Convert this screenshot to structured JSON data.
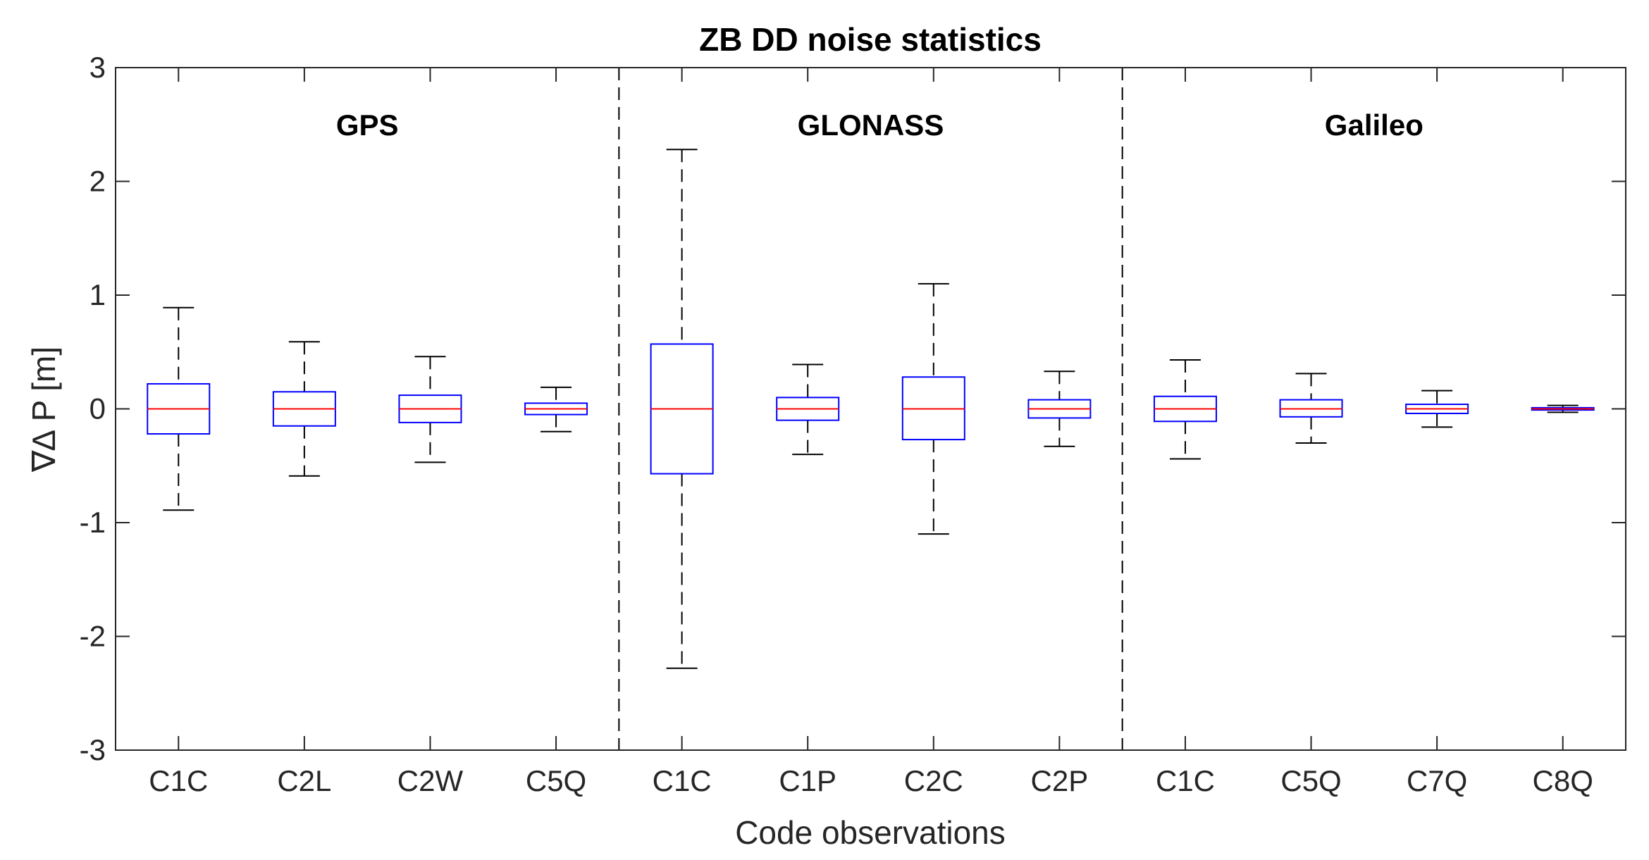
{
  "chart_data": {
    "type": "boxplot",
    "title": "ZB DD noise statistics",
    "xlabel": "Code observations",
    "ylabel": "∇∆ P [m]",
    "ylim": [
      -3,
      3
    ],
    "yticks": [
      -3,
      -2,
      -1,
      0,
      1,
      2,
      3
    ],
    "grid": false,
    "colors": {
      "box": "#0000ff",
      "median": "#ff0000",
      "whisker": "#000000",
      "axis": "#262626"
    },
    "groups": [
      {
        "name": "GPS",
        "categories": [
          "C1C",
          "C2L",
          "C2W",
          "C5Q"
        ]
      },
      {
        "name": "GLONASS",
        "categories": [
          "C1C",
          "C1P",
          "C2C",
          "C2P"
        ]
      },
      {
        "name": "Galileo",
        "categories": [
          "C1C",
          "C5Q",
          "C7Q",
          "C8Q"
        ]
      }
    ],
    "boxes": [
      {
        "label": "C1C",
        "group": "GPS",
        "whisker_low": -0.89,
        "q1": -0.22,
        "median": 0.0,
        "q3": 0.22,
        "whisker_high": 0.89
      },
      {
        "label": "C2L",
        "group": "GPS",
        "whisker_low": -0.59,
        "q1": -0.15,
        "median": 0.0,
        "q3": 0.15,
        "whisker_high": 0.59
      },
      {
        "label": "C2W",
        "group": "GPS",
        "whisker_low": -0.47,
        "q1": -0.12,
        "median": 0.0,
        "q3": 0.12,
        "whisker_high": 0.46
      },
      {
        "label": "C5Q",
        "group": "GPS",
        "whisker_low": -0.2,
        "q1": -0.05,
        "median": 0.0,
        "q3": 0.05,
        "whisker_high": 0.19
      },
      {
        "label": "C1C",
        "group": "GLONASS",
        "whisker_low": -2.28,
        "q1": -0.57,
        "median": 0.0,
        "q3": 0.57,
        "whisker_high": 2.28
      },
      {
        "label": "C1P",
        "group": "GLONASS",
        "whisker_low": -0.4,
        "q1": -0.1,
        "median": 0.0,
        "q3": 0.1,
        "whisker_high": 0.39
      },
      {
        "label": "C2C",
        "group": "GLONASS",
        "whisker_low": -1.1,
        "q1": -0.27,
        "median": 0.0,
        "q3": 0.28,
        "whisker_high": 1.1
      },
      {
        "label": "C2P",
        "group": "GLONASS",
        "whisker_low": -0.33,
        "q1": -0.08,
        "median": 0.0,
        "q3": 0.08,
        "whisker_high": 0.33
      },
      {
        "label": "C1C",
        "group": "Galileo",
        "whisker_low": -0.44,
        "q1": -0.11,
        "median": 0.0,
        "q3": 0.11,
        "whisker_high": 0.43
      },
      {
        "label": "C5Q",
        "group": "Galileo",
        "whisker_low": -0.3,
        "q1": -0.07,
        "median": 0.0,
        "q3": 0.08,
        "whisker_high": 0.31
      },
      {
        "label": "C7Q",
        "group": "Galileo",
        "whisker_low": -0.16,
        "q1": -0.04,
        "median": 0.0,
        "q3": 0.04,
        "whisker_high": 0.16
      },
      {
        "label": "C8Q",
        "group": "Galileo",
        "whisker_low": -0.03,
        "q1": -0.01,
        "median": 0.0,
        "q3": 0.01,
        "whisker_high": 0.03
      }
    ]
  }
}
